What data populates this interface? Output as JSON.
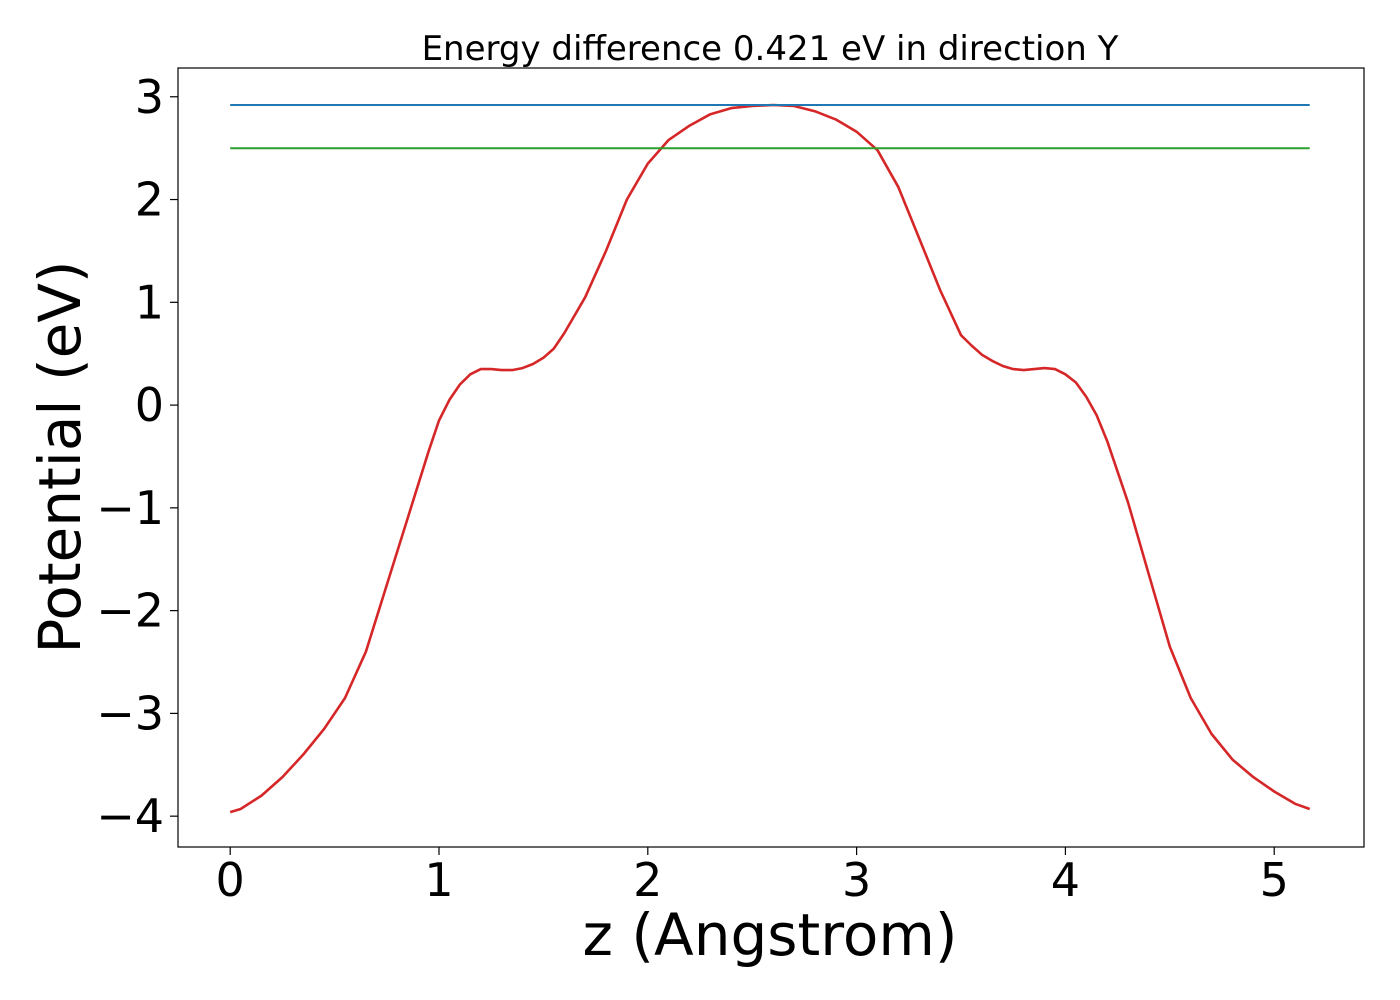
{
  "chart_data": {
    "type": "line",
    "title": "Energy difference 0.421 eV in direction Y",
    "xlabel": "z (Angstrom)",
    "ylabel": "Potential (eV)",
    "xlim": [
      -0.25,
      5.43
    ],
    "ylim": [
      -4.3,
      3.28
    ],
    "xticks": [
      0,
      1,
      2,
      3,
      4,
      5
    ],
    "xtick_labels": [
      "0",
      "1",
      "2",
      "3",
      "4",
      "5"
    ],
    "yticks": [
      -4,
      -3,
      -2,
      -1,
      0,
      1,
      2,
      3
    ],
    "ytick_labels": [
      "−4",
      "−3",
      "−2",
      "−1",
      "0",
      "1",
      "2",
      "3"
    ],
    "grid": false,
    "series": [
      {
        "color": "#d62728",
        "style": "line",
        "x": [
          0,
          0.05,
          0.15,
          0.25,
          0.35,
          0.45,
          0.55,
          0.65,
          0.75,
          0.85,
          0.95,
          1.0,
          1.05,
          1.1,
          1.15,
          1.2,
          1.25,
          1.3,
          1.35,
          1.4,
          1.45,
          1.5,
          1.55,
          1.6,
          1.7,
          1.8,
          1.9,
          2.0,
          2.1,
          2.2,
          2.3,
          2.4,
          2.5,
          2.6,
          2.7,
          2.8,
          2.9,
          3.0,
          3.1,
          3.2,
          3.3,
          3.4,
          3.5,
          3.55,
          3.6,
          3.65,
          3.7,
          3.75,
          3.8,
          3.85,
          3.9,
          3.95,
          4.0,
          4.05,
          4.1,
          4.15,
          4.2,
          4.3,
          4.4,
          4.5,
          4.6,
          4.7,
          4.8,
          4.9,
          5.0,
          5.1,
          5.17
        ],
        "y": [
          -3.96,
          -3.93,
          -3.8,
          -3.62,
          -3.4,
          -3.15,
          -2.85,
          -2.4,
          -1.75,
          -1.1,
          -0.45,
          -0.15,
          0.05,
          0.2,
          0.3,
          0.35,
          0.35,
          0.34,
          0.34,
          0.36,
          0.4,
          0.46,
          0.55,
          0.7,
          1.05,
          1.5,
          2.0,
          2.35,
          2.58,
          2.72,
          2.83,
          2.89,
          2.91,
          2.92,
          2.91,
          2.86,
          2.78,
          2.66,
          2.48,
          2.12,
          1.62,
          1.12,
          0.68,
          0.58,
          0.49,
          0.43,
          0.38,
          0.35,
          0.34,
          0.35,
          0.36,
          0.35,
          0.3,
          0.22,
          0.08,
          -0.1,
          -0.35,
          -0.95,
          -1.65,
          -2.35,
          -2.85,
          -3.2,
          -3.45,
          -3.62,
          -3.76,
          -3.88,
          -3.93
        ]
      },
      {
        "color": "#1f77b4",
        "style": "hline",
        "x": [
          0,
          5.17
        ],
        "y": [
          2.92,
          2.92
        ]
      },
      {
        "color": "#2ca02c",
        "style": "hline",
        "x": [
          0,
          5.17
        ],
        "y": [
          2.5,
          2.5
        ]
      }
    ]
  }
}
